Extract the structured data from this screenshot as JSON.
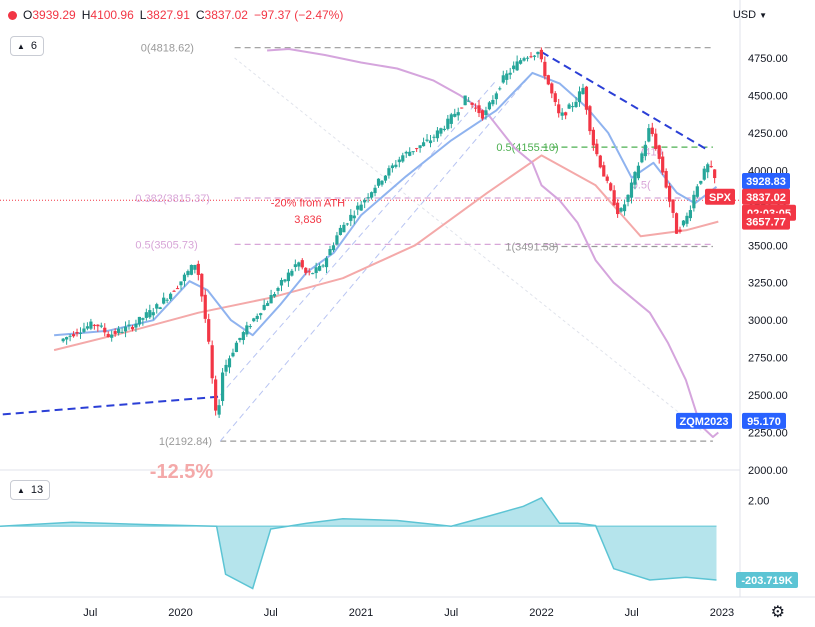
{
  "ohlc": {
    "open_label": "O",
    "open": "3939.29",
    "high_label": "H",
    "high": "4100.96",
    "low_label": "L",
    "low": "3827.91",
    "close_label": "C",
    "close": "3837.02",
    "change": "−97.37 (−2.47%)"
  },
  "currency": "USD",
  "main_legend_count": "6",
  "sub_legend_count": "13",
  "settings_icon": "gear-icon",
  "colors": {
    "up": "#26a69a",
    "down": "#f23645",
    "ma20": "#8fb3ef",
    "ma200": "#f4a9a9",
    "overlay": "#d5a5dd",
    "trend": "#2b3fd6",
    "fib_grey": "#9a9a9a",
    "fib_pink": "#d8a6d8",
    "fib_green": "#4caf50",
    "area": "#5cc4d4"
  },
  "chart_data": [
    {
      "type": "candlestick",
      "title": "",
      "x": [
        "Jul",
        "2020",
        "Jul",
        "2021",
        "Jul",
        "2022",
        "Jul",
        "2023"
      ],
      "y_ticks": [
        "4750.00",
        "4500.00",
        "4250.00",
        "4000.00",
        "3750.00",
        "3500.00",
        "3250.00",
        "3000.00",
        "2750.00",
        "2500.00",
        "2250.00",
        "2000.00"
      ],
      "ylim": [
        2000,
        4950
      ],
      "y_label": "USD",
      "series": [
        {
          "name": "SPX",
          "last": "3837.02",
          "countdown": "02:03:05",
          "path": [
            [
              2019.35,
              2860
            ],
            [
              2019.45,
              2930
            ],
            [
              2019.55,
              2980
            ],
            [
              2019.62,
              2900
            ],
            [
              2019.75,
              2960
            ],
            [
              2019.9,
              3100
            ],
            [
              2020.0,
              3230
            ],
            [
              2020.1,
              3380
            ],
            [
              2020.12,
              3300
            ],
            [
              2020.17,
              2900
            ],
            [
              2020.22,
              2300
            ],
            [
              2020.25,
              2650
            ],
            [
              2020.33,
              2850
            ],
            [
              2020.45,
              3050
            ],
            [
              2020.55,
              3200
            ],
            [
              2020.67,
              3390
            ],
            [
              2020.72,
              3300
            ],
            [
              2020.8,
              3350
            ],
            [
              2020.9,
              3600
            ],
            [
              2021.0,
              3750
            ],
            [
              2021.1,
              3900
            ],
            [
              2021.25,
              4100
            ],
            [
              2021.4,
              4200
            ],
            [
              2021.5,
              4320
            ],
            [
              2021.6,
              4480
            ],
            [
              2021.7,
              4360
            ],
            [
              2021.8,
              4600
            ],
            [
              2021.92,
              4760
            ],
            [
              2022.0,
              4790
            ],
            [
              2022.05,
              4600
            ],
            [
              2022.12,
              4350
            ],
            [
              2022.2,
              4450
            ],
            [
              2022.25,
              4550
            ],
            [
              2022.3,
              4200
            ],
            [
              2022.37,
              3950
            ],
            [
              2022.45,
              3700
            ],
            [
              2022.5,
              3830
            ],
            [
              2022.6,
              4200
            ],
            [
              2022.62,
              4300
            ],
            [
              2022.7,
              3950
            ],
            [
              2022.77,
              3580
            ],
            [
              2022.83,
              3700
            ],
            [
              2022.88,
              3900
            ],
            [
              2022.95,
              4050
            ],
            [
              2022.97,
              3940
            ]
          ]
        },
        {
          "name": "SMA 20",
          "path": [
            [
              2019.3,
              2900
            ],
            [
              2019.6,
              2930
            ],
            [
              2019.85,
              3000
            ],
            [
              2020.05,
              3260
            ],
            [
              2020.15,
              3200
            ],
            [
              2020.28,
              3000
            ],
            [
              2020.4,
              2900
            ],
            [
              2020.55,
              3100
            ],
            [
              2020.7,
              3320
            ],
            [
              2020.85,
              3450
            ],
            [
              2021.0,
              3700
            ],
            [
              2021.25,
              3960
            ],
            [
              2021.5,
              4200
            ],
            [
              2021.75,
              4400
            ],
            [
              2021.95,
              4650
            ],
            [
              2022.1,
              4580
            ],
            [
              2022.25,
              4420
            ],
            [
              2022.37,
              4250
            ],
            [
              2022.5,
              3950
            ],
            [
              2022.62,
              4050
            ],
            [
              2022.75,
              3850
            ],
            [
              2022.85,
              3780
            ],
            [
              2022.97,
              3890
            ]
          ]
        },
        {
          "name": "SMA 200",
          "path": [
            [
              2019.3,
              2800
            ],
            [
              2019.7,
              2920
            ],
            [
              2020.1,
              3050
            ],
            [
              2020.5,
              3150
            ],
            [
              2020.9,
              3280
            ],
            [
              2021.3,
              3500
            ],
            [
              2021.7,
              3850
            ],
            [
              2022.0,
              4100
            ],
            [
              2022.3,
              3900
            ],
            [
              2022.55,
              3560
            ],
            [
              2022.8,
              3600
            ],
            [
              2022.98,
              3657.77
            ]
          ]
        },
        {
          "name": "ZQM2023",
          "last": "95.170",
          "path": [
            [
              2020.48,
              4800
            ],
            [
              2020.6,
              4810
            ],
            [
              2020.8,
              4770
            ],
            [
              2021.0,
              4720
            ],
            [
              2021.2,
              4680
            ],
            [
              2021.4,
              4600
            ],
            [
              2021.55,
              4500
            ],
            [
              2021.7,
              4380
            ],
            [
              2021.85,
              4150
            ],
            [
              2021.95,
              4050
            ],
            [
              2022.0,
              3900
            ],
            [
              2022.1,
              3800
            ],
            [
              2022.2,
              3650
            ],
            [
              2022.3,
              3400
            ],
            [
              2022.4,
              3250
            ],
            [
              2022.5,
              3150
            ],
            [
              2022.6,
              3050
            ],
            [
              2022.7,
              2850
            ],
            [
              2022.8,
              2600
            ],
            [
              2022.88,
              2300
            ],
            [
              2022.95,
              2220
            ],
            [
              2022.98,
              2250
            ]
          ]
        },
        {
          "name": "Trend",
          "path": [
            [
              2018.8,
              2350
            ],
            [
              2020.22,
              2490
            ]
          ]
        },
        {
          "name": "Trend 2",
          "path": [
            [
              2022.0,
              4790
            ],
            [
              2022.93,
              4130
            ]
          ]
        }
      ],
      "value_labels": [
        {
          "label": "3928.83",
          "color": "#2962ff",
          "y": 3928.83
        },
        {
          "label": "SPX",
          "color": "#f23645",
          "y": 3837.02
        },
        {
          "label": "3837.02",
          "color": "#f23645",
          "y": 3837.02
        },
        {
          "label": "02:03:05",
          "color": "#f23645",
          "y": 3780
        },
        {
          "label": "3657.77",
          "color": "#f23645",
          "y": 3657.77
        },
        {
          "label": "ZQM2023",
          "color": "#2962ff",
          "y": 2328
        },
        {
          "label": "95.170",
          "color": "#2962ff",
          "y": 2328
        }
      ],
      "annotations": [
        {
          "text": "0(4818.62)",
          "y": 4818.62,
          "color": "#9a9a9a"
        },
        {
          "text": "0.5(4155.10)",
          "y": 4155.1,
          "color": "#4caf50"
        },
        {
          "text": "0.382(3815.37)",
          "y": 3815.37,
          "color": "#d8a6d8"
        },
        {
          "text": "-20% from ATH",
          "color": "#f23645"
        },
        {
          "text": "3,836",
          "color": "#f23645"
        },
        {
          "text": "0.5(3505.73)",
          "y": 3505.73,
          "color": "#d8a6d8"
        },
        {
          "text": "1(3491.58)",
          "y": 3491.58,
          "color": "#9a9a9a"
        },
        {
          "text": "1(2192.84)",
          "y": 2192.84,
          "color": "#9a9a9a"
        },
        {
          "text": "-12.5%",
          "color": "#f4a9a9"
        },
        {
          "text": "0.5(",
          "color": "#d8a6d8"
        },
        {
          "text": "(410",
          "color": "#d8a6d8"
        }
      ]
    },
    {
      "type": "area",
      "title": "",
      "y_ticks": [
        "2.00"
      ],
      "value_label": "-203.719K",
      "path": [
        [
          2019.0,
          0.55
        ],
        [
          2019.4,
          0.62
        ],
        [
          2019.8,
          0.58
        ],
        [
          2020.2,
          0.55
        ],
        [
          2020.25,
          -0.3
        ],
        [
          2020.4,
          -0.55
        ],
        [
          2020.5,
          0.5
        ],
        [
          2020.7,
          0.6
        ],
        [
          2020.9,
          0.68
        ],
        [
          2021.2,
          0.65
        ],
        [
          2021.5,
          0.55
        ],
        [
          2021.7,
          0.72
        ],
        [
          2021.9,
          0.9
        ],
        [
          2022.0,
          1.05
        ],
        [
          2022.1,
          0.6
        ],
        [
          2022.2,
          0.6
        ],
        [
          2022.3,
          0.56
        ],
        [
          2022.4,
          -0.2
        ],
        [
          2022.6,
          -0.4
        ],
        [
          2022.8,
          -0.35
        ],
        [
          2022.97,
          -0.4
        ]
      ]
    }
  ]
}
